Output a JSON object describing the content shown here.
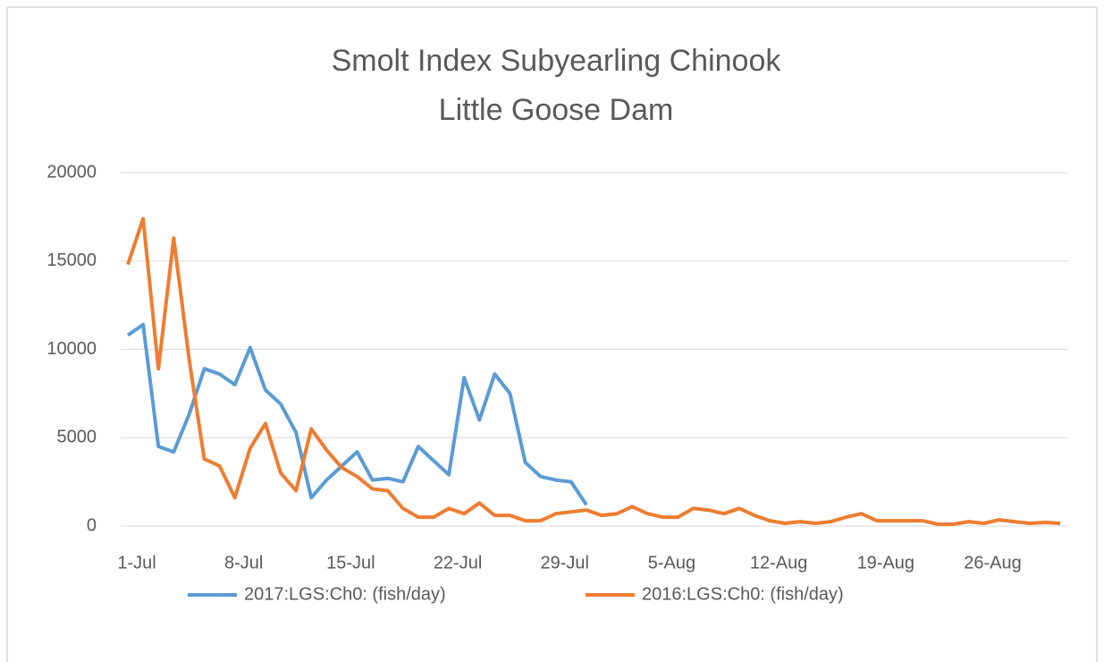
{
  "chart_data": {
    "type": "line",
    "title": "Smolt Index Subyearling Chinook",
    "subtitle": "Little Goose Dam",
    "categories": [
      "1-Jul",
      null,
      null,
      null,
      null,
      null,
      null,
      "8-Jul",
      null,
      null,
      null,
      null,
      null,
      null,
      "15-Jul",
      null,
      null,
      null,
      null,
      null,
      null,
      "22-Jul",
      null,
      null,
      null,
      null,
      null,
      null,
      "29-Jul",
      null,
      null,
      null,
      null,
      null,
      null,
      "5-Aug",
      null,
      null,
      null,
      null,
      null,
      null,
      "12-Aug",
      null,
      null,
      null,
      null,
      null,
      null,
      "19-Aug",
      null,
      null,
      null,
      null,
      null,
      null,
      "26-Aug",
      null,
      null,
      null,
      null,
      null
    ],
    "series": [
      {
        "name": "2017:LGS:Ch0: (fish/day)",
        "color": "#5b9bd5",
        "values": [
          10800,
          11400,
          4500,
          4200,
          6300,
          8900,
          8600,
          8000,
          10100,
          7700,
          6900,
          5300,
          1600,
          2600,
          3400,
          4200,
          2600,
          2700,
          2500,
          4500,
          3700,
          2900,
          8400,
          6000,
          8600,
          7500,
          3600,
          2800,
          2600,
          2500,
          1200,
          null,
          null,
          null,
          null,
          null,
          null,
          null,
          null,
          null,
          null,
          null,
          null,
          null,
          null,
          null,
          null,
          null,
          null,
          null,
          null,
          null,
          null,
          null,
          null,
          null,
          null,
          null,
          null,
          null,
          null,
          null
        ]
      },
      {
        "name": "2016:LGS:Ch0: (fish/day)",
        "color": "#ed7d31",
        "values": [
          14800,
          17400,
          8900,
          16300,
          9500,
          3800,
          3400,
          1600,
          4400,
          5800,
          3000,
          2000,
          5500,
          4300,
          3300,
          2800,
          2100,
          2000,
          1000,
          500,
          500,
          1000,
          700,
          1300,
          600,
          600,
          300,
          300,
          700,
          800,
          900,
          600,
          700,
          1100,
          700,
          500,
          500,
          1000,
          900,
          700,
          1000,
          600,
          300,
          150,
          250,
          150,
          250,
          500,
          700,
          300,
          300,
          300,
          300,
          100,
          100,
          250,
          150,
          350,
          250,
          150,
          200,
          150
        ]
      }
    ],
    "ylim": [
      0,
      20000
    ],
    "yticks": [
      0,
      5000,
      10000,
      15000,
      20000
    ],
    "grid": true,
    "legend": "bottom"
  }
}
